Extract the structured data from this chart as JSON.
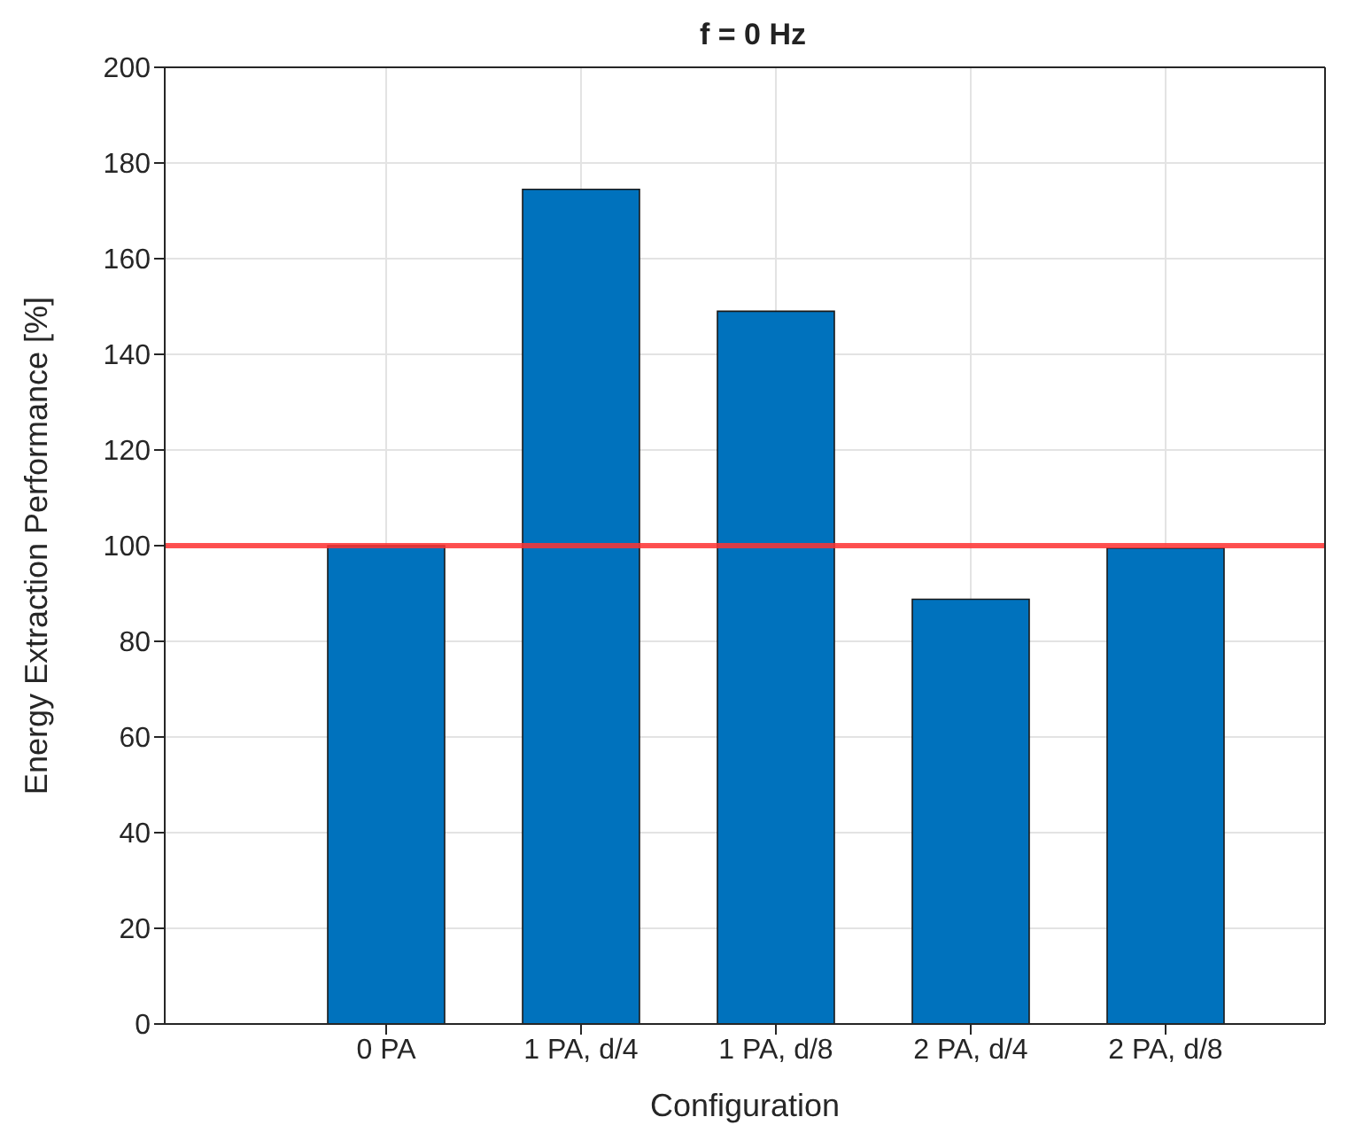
{
  "chart_data": {
    "type": "bar",
    "title": "f = 0 Hz",
    "xlabel": "Configuration",
    "ylabel": "Energy Extraction Performance [%]",
    "categories": [
      "0 PA",
      "1 PA, d/4",
      "1 PA, d/8",
      "2 PA, d/4",
      "2 PA, d/8"
    ],
    "values": [
      100,
      174.5,
      149,
      88.8,
      99.5
    ],
    "color": "#0072bd",
    "ylim": [
      0,
      200
    ],
    "yticks": [
      0,
      20,
      40,
      60,
      80,
      100,
      120,
      140,
      160,
      180,
      200
    ],
    "grid": true,
    "ref_lines": [
      {
        "axis": "y",
        "value": 100,
        "color": "#ff3333"
      }
    ]
  }
}
